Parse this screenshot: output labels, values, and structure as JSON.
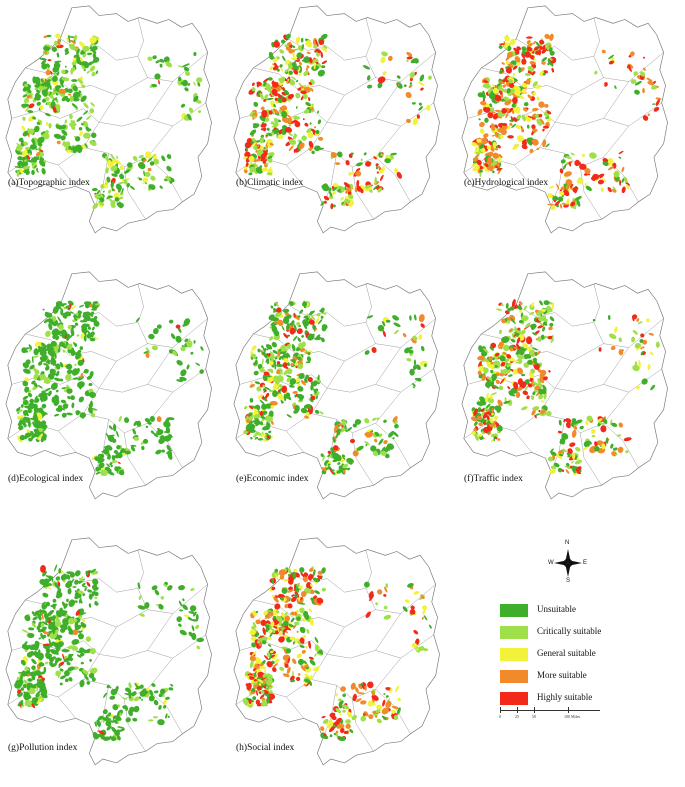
{
  "panels": [
    {
      "caption": "(a)Topographic index",
      "palette_weights": [
        0.45,
        0.35,
        0.12,
        0.05,
        0.03
      ]
    },
    {
      "caption": "(b)Climatic index",
      "palette_weights": [
        0.25,
        0.2,
        0.15,
        0.15,
        0.25
      ]
    },
    {
      "caption": "(c)Hydrological index",
      "palette_weights": [
        0.15,
        0.15,
        0.15,
        0.25,
        0.3
      ]
    },
    {
      "caption": "(d)Ecological index",
      "palette_weights": [
        0.8,
        0.15,
        0.03,
        0.01,
        0.01
      ]
    },
    {
      "caption": "(e)Economic index",
      "palette_weights": [
        0.55,
        0.2,
        0.08,
        0.07,
        0.1
      ]
    },
    {
      "caption": "(f)Traffic index",
      "palette_weights": [
        0.35,
        0.25,
        0.12,
        0.13,
        0.15
      ]
    },
    {
      "caption": "(g)Pollution index",
      "palette_weights": [
        0.75,
        0.15,
        0.04,
        0.03,
        0.03
      ]
    },
    {
      "caption": "(h)Social index",
      "palette_weights": [
        0.2,
        0.2,
        0.15,
        0.2,
        0.25
      ]
    }
  ],
  "legend": {
    "items": [
      {
        "label": "Unsuitable",
        "color": "#3fae2a"
      },
      {
        "label": "Critically suitable",
        "color": "#9fe04a"
      },
      {
        "label": "General suitable",
        "color": "#f2f23a"
      },
      {
        "label": "More suitable",
        "color": "#f08a2a"
      },
      {
        "label": "Highly suitable",
        "color": "#f22a1a"
      }
    ]
  },
  "scalebar": {
    "labels": [
      "0",
      "25",
      "50",
      "100 Miles"
    ]
  },
  "compass": {
    "n": "N",
    "s": "S",
    "e": "E",
    "w": "W"
  }
}
